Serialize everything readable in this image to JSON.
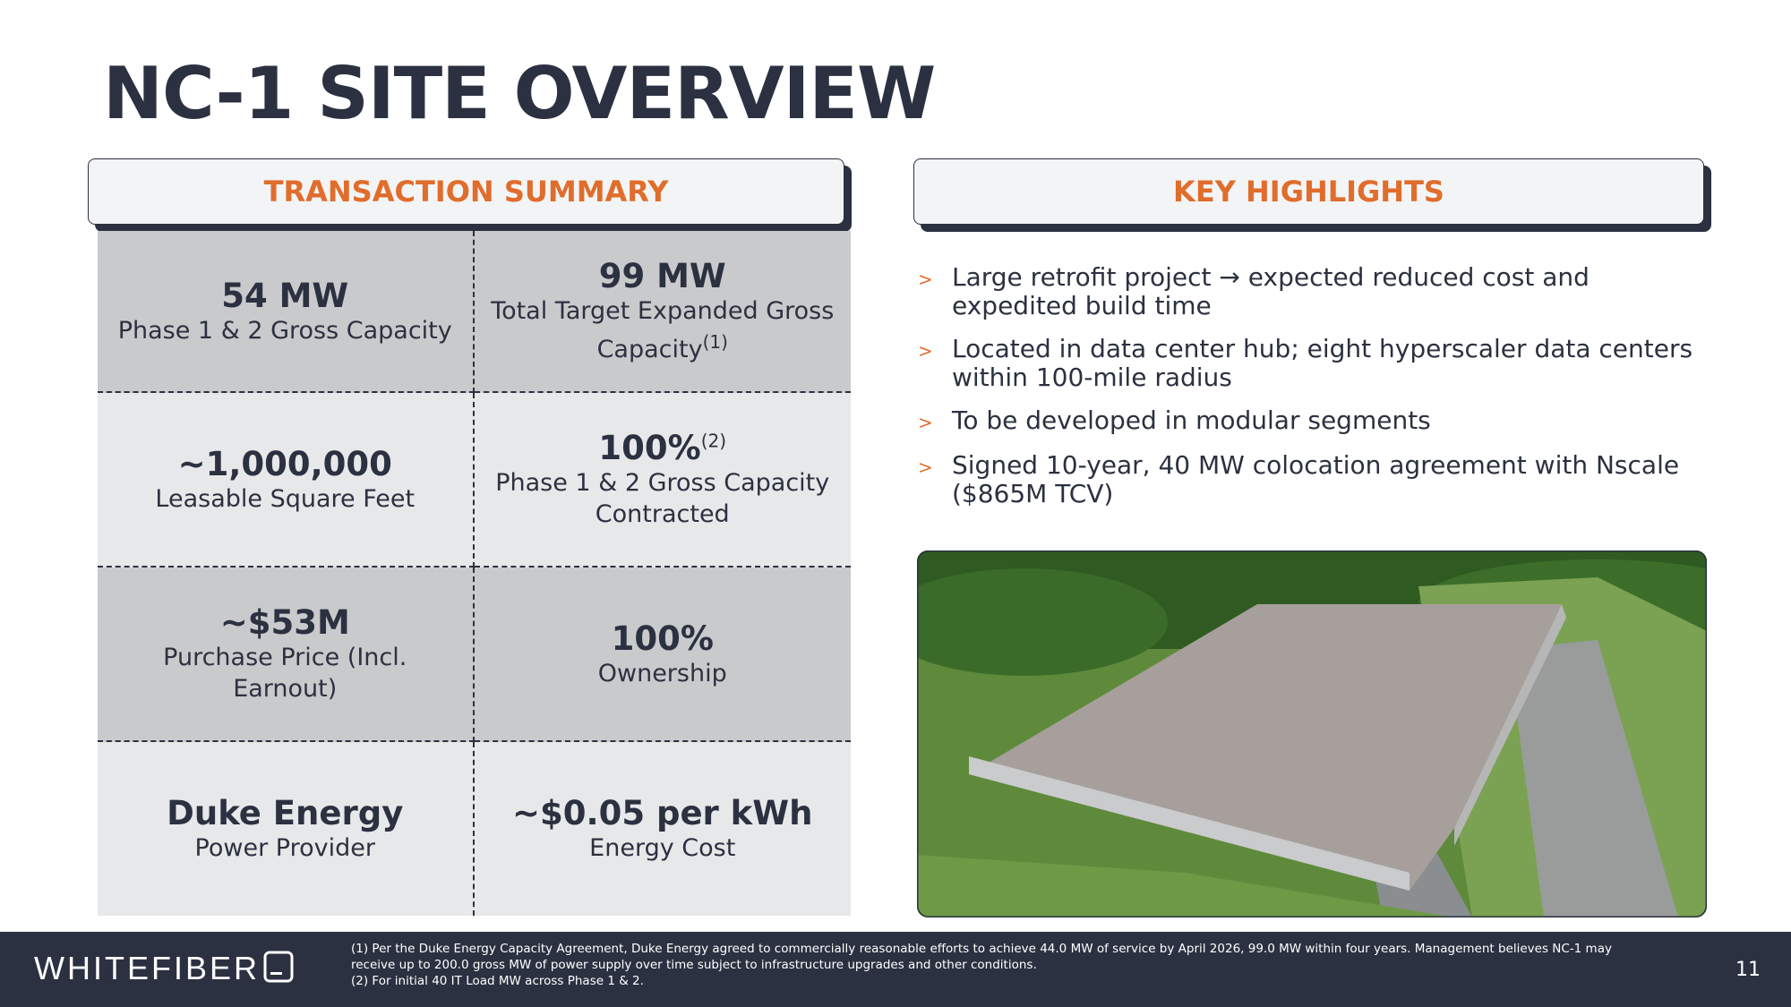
{
  "header": {
    "title": "NC-1 SITE OVERVIEW"
  },
  "transaction_summary": {
    "title": "TRANSACTION SUMMARY",
    "cells": [
      {
        "value": "54 MW",
        "label": "Phase 1 & 2 Gross Capacity"
      },
      {
        "value": "99 MW",
        "label": "Total Target Expanded Gross Capacity",
        "label_note": "(1)"
      },
      {
        "value": "~1,000,000",
        "label": "Leasable Square Feet"
      },
      {
        "value": "100%",
        "value_note": "(2)",
        "label": "Phase 1 & 2 Gross Capacity Contracted"
      },
      {
        "value": "~$53M",
        "label": "Purchase Price (Incl. Earnout)"
      },
      {
        "value": "100%",
        "label": "Ownership"
      },
      {
        "value": "Duke Energy",
        "label": "Power Provider"
      },
      {
        "value": "~$0.05 per kWh",
        "label": "Energy Cost"
      }
    ]
  },
  "key_highlights": {
    "title": "KEY HIGHLIGHTS",
    "marker": ">",
    "bullets": [
      "Large retrofit project → expected reduced cost and expedited build time",
      "Located in data center hub; eight hyperscaler data centers within 100-mile radius",
      "To be developed in modular segments",
      "Signed 10-year, 40 MW colocation agreement with Nscale ($865M TCV)"
    ]
  },
  "footer": {
    "logo": "WHITEFIBER",
    "notes": [
      "(1) Per the Duke Energy Capacity Agreement, Duke Energy agreed to commercially reasonable efforts to achieve 44.0 MW of service by April 2026, 99.0 MW within four years. Management believes NC-1 may receive up to 200.0 gross MW of power supply over time subject to infrastructure upgrades and other conditions.",
      "(2) For initial 40 IT Load MW across Phase 1 & 2."
    ],
    "page_number": "11"
  }
}
